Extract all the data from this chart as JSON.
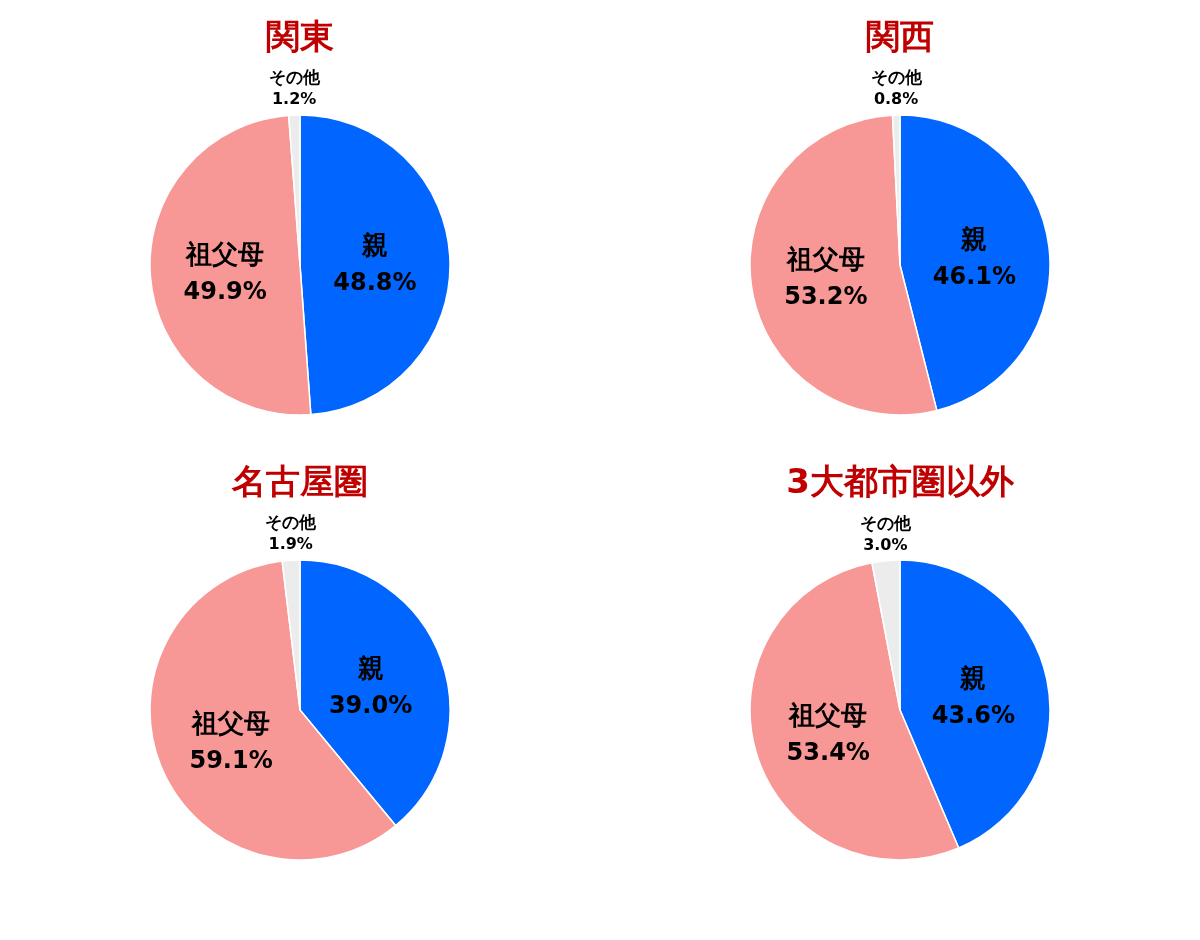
{
  "chart_data": [
    {
      "type": "pie",
      "title": "関東",
      "categories": [
        "親",
        "祖父母",
        "その他"
      ],
      "values": [
        48.8,
        49.9,
        1.2
      ],
      "value_labels": [
        "48.8%",
        "49.9%",
        "1.2%"
      ],
      "colors": [
        "#0066ff",
        "#f89896",
        "#ececec"
      ]
    },
    {
      "type": "pie",
      "title": "関西",
      "categories": [
        "親",
        "祖父母",
        "その他"
      ],
      "values": [
        46.1,
        53.2,
        0.8
      ],
      "value_labels": [
        "46.1%",
        "53.2%",
        "0.8%"
      ],
      "colors": [
        "#0066ff",
        "#f89896",
        "#ececec"
      ]
    },
    {
      "type": "pie",
      "title": "名古屋圏",
      "categories": [
        "親",
        "祖父母",
        "その他"
      ],
      "values": [
        39.0,
        59.1,
        1.9
      ],
      "value_labels": [
        "39.0%",
        "59.1%",
        "1.9%"
      ],
      "colors": [
        "#0066ff",
        "#f89896",
        "#ececec"
      ]
    },
    {
      "type": "pie",
      "title": "3大都市圏以外",
      "categories": [
        "親",
        "祖父母",
        "その他"
      ],
      "values": [
        43.6,
        53.4,
        3.0
      ],
      "value_labels": [
        "43.6%",
        "53.4%",
        "3.0%"
      ],
      "colors": [
        "#0066ff",
        "#f89896",
        "#ececec"
      ]
    }
  ]
}
